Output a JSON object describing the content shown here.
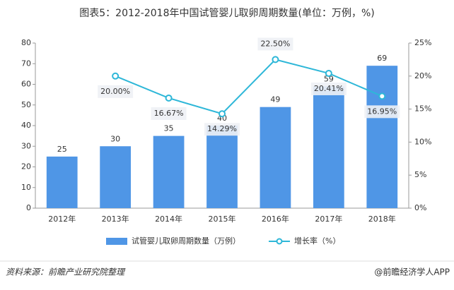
{
  "chart_data": {
    "type": "bar-line",
    "title": "图表5：2012-2018年中国试管婴儿取卵周期数量(单位：万例，%)",
    "categories": [
      "2012年",
      "2013年",
      "2014年",
      "2015年",
      "2016年",
      "2017年",
      "2018年"
    ],
    "series": [
      {
        "name": "试管婴儿取卵周期数量（万例）",
        "type": "bar",
        "color": "#4f96e6",
        "values": [
          25,
          30,
          35,
          40,
          49,
          59,
          69
        ]
      },
      {
        "name": "增长率（%）",
        "type": "line",
        "axis": "y2",
        "color": "#2eb7d8",
        "values": [
          null,
          20.0,
          16.67,
          14.29,
          22.5,
          20.41,
          16.95
        ],
        "value_labels": [
          null,
          "20.00%",
          "16.67%",
          "14.29%",
          "22.50%",
          "20.41%",
          "16.95%"
        ]
      }
    ],
    "ylim": [
      0,
      80
    ],
    "yticks": [
      0,
      10,
      20,
      30,
      40,
      50,
      60,
      70,
      80
    ],
    "y2lim": [
      0,
      25
    ],
    "y2ticks": [
      {
        "value": 0,
        "label": "0%"
      },
      {
        "value": 5,
        "label": "5%"
      },
      {
        "value": 10,
        "label": "10%"
      },
      {
        "value": 15,
        "label": "15%"
      },
      {
        "value": 20,
        "label": "20%"
      },
      {
        "value": 25,
        "label": "25%"
      }
    ],
    "source": "资料来源：前瞻产业研究院整理",
    "credit": "@前瞻经济学人APP"
  }
}
